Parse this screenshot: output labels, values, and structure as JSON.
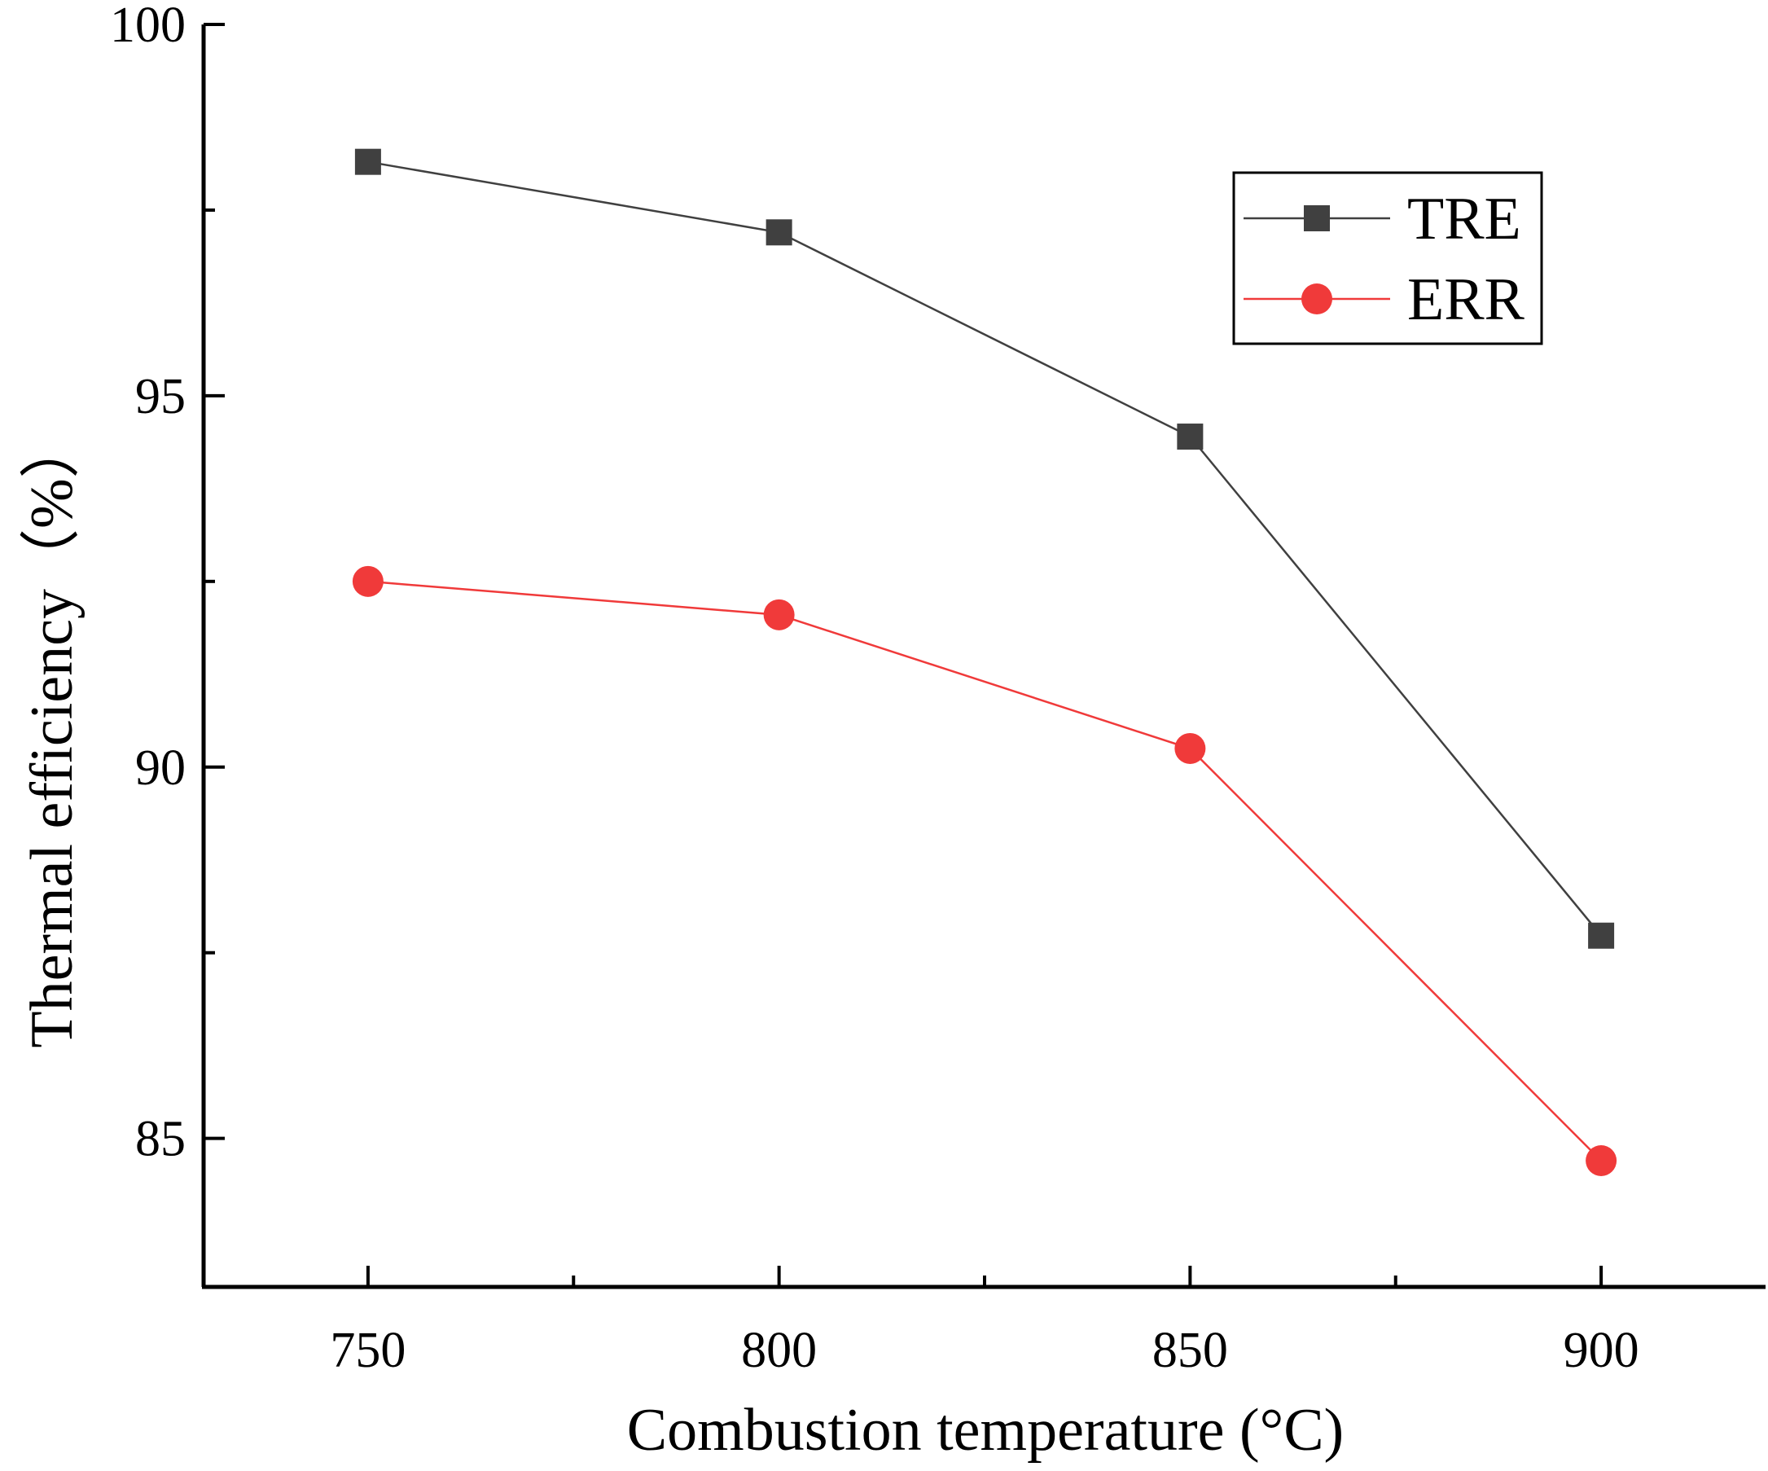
{
  "chart_data": {
    "type": "line",
    "title": "",
    "xlabel": "Combustion temperature (°C)",
    "ylabel": "Thermal efficiency（%）",
    "x": [
      750,
      800,
      850,
      900
    ],
    "x_ticks": [
      750,
      800,
      850,
      900
    ],
    "x_tick_labels": [
      "750",
      "800",
      "850",
      "900"
    ],
    "xlim": [
      730,
      920
    ],
    "y_ticks": [
      85,
      90,
      95,
      100
    ],
    "y_tick_labels": [
      "85",
      "90",
      "95",
      "100"
    ],
    "ylim": [
      83,
      100
    ],
    "grid": false,
    "legend_position": "top-right",
    "series": [
      {
        "name": "TRE",
        "values": [
          98.15,
          97.2,
          94.45,
          87.73
        ],
        "color": "#404040",
        "marker": "square"
      },
      {
        "name": "ERR",
        "values": [
          92.5,
          92.05,
          90.25,
          84.7
        ],
        "color": "#f03a3a",
        "marker": "circle"
      }
    ]
  }
}
